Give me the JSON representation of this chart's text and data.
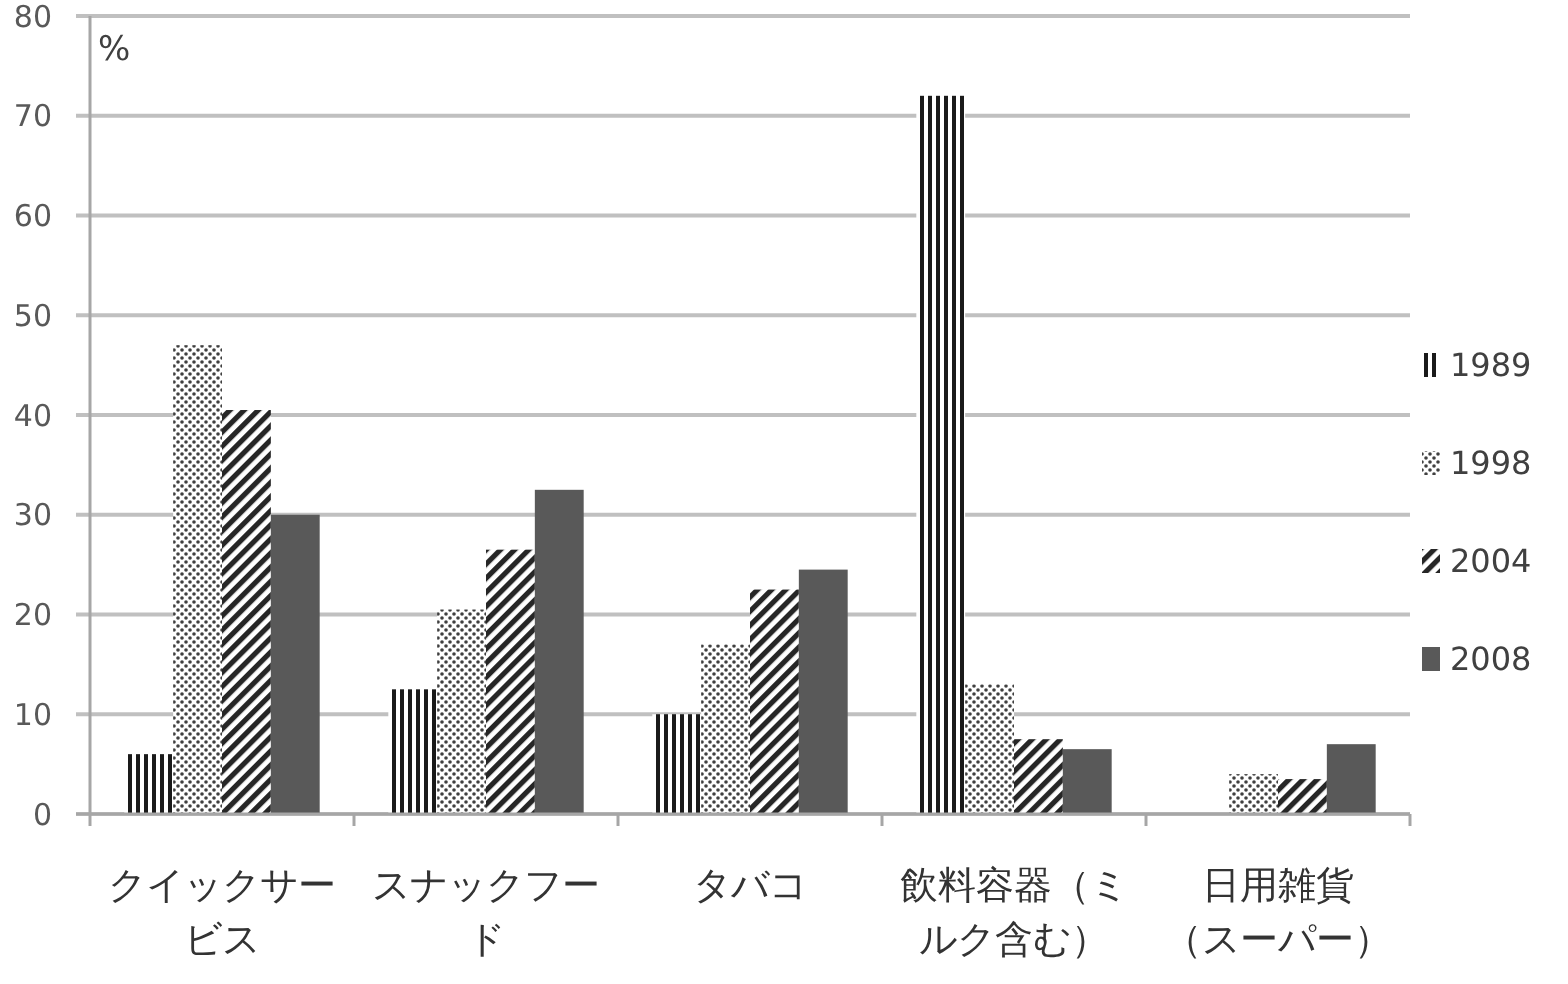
{
  "chart_data": {
    "type": "bar",
    "ylabel": "%",
    "categories": [
      "クイックサービス",
      "スナックフード",
      "タバコ",
      "飲料容器（ミルク含む）",
      "日用雑貨（スーパー）"
    ],
    "series": [
      {
        "name": "1989",
        "color": "#1a1a1a",
        "values": [
          6,
          12.5,
          10,
          72,
          null
        ]
      },
      {
        "name": "1998",
        "color": "#404040",
        "values": [
          47,
          20.5,
          17,
          13,
          4
        ]
      },
      {
        "name": "2004",
        "color": "#262626",
        "values": [
          40.5,
          26.5,
          22.5,
          7.5,
          3.5
        ]
      },
      {
        "name": "2008",
        "color": "#595959",
        "values": [
          30,
          32.5,
          24.5,
          6.5,
          7
        ]
      }
    ],
    "ylim": [
      0,
      80
    ],
    "yticks": [
      0,
      10,
      20,
      30,
      40,
      50,
      60,
      70,
      80
    ],
    "grid": "y",
    "legend": "right"
  }
}
